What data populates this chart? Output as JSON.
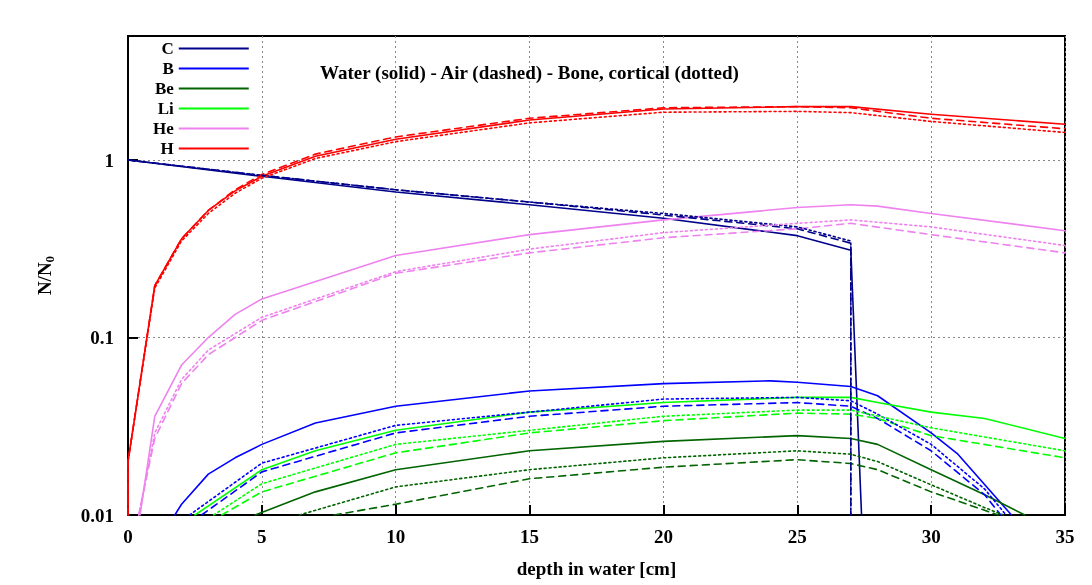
{
  "chart_data": {
    "type": "line",
    "title": "Water (solid) - Air (dashed) - Bone, cortical (dotted)",
    "xlabel": "depth in water [cm]",
    "ylabel": "N/N$_{0}$",
    "xlim": [
      0,
      35
    ],
    "xticks": [
      0,
      5,
      10,
      15,
      20,
      25,
      30,
      35
    ],
    "ylim": [
      0.01,
      5
    ],
    "yticks": [
      0.01,
      0.1,
      1
    ],
    "log": "y",
    "grid": true,
    "legend": "top left",
    "marker": "none",
    "series": [
      {
        "name": "C",
        "color": "#00008b",
        "line_style": "solid",
        "x": [
          0,
          5,
          10,
          15,
          20,
          25,
          27,
          27.4
        ],
        "values": [
          1,
          0.81,
          0.66,
          0.56,
          0.47,
          0.375,
          0.31,
          0.01
        ]
      },
      {
        "name": "B",
        "color": "#0000ff",
        "line_style": "solid",
        "x": [
          1.75,
          2,
          3,
          4,
          5,
          7,
          10,
          15,
          20,
          24,
          25,
          27,
          28,
          30,
          31,
          33
        ],
        "values": [
          0.01,
          0.0115,
          0.017,
          0.021,
          0.025,
          0.033,
          0.041,
          0.05,
          0.055,
          0.057,
          0.056,
          0.053,
          0.047,
          0.029,
          0.022,
          0.01
        ]
      },
      {
        "name": "Be",
        "color": "#006400",
        "line_style": "solid",
        "x": [
          4.75,
          7,
          10,
          15,
          20,
          25,
          27,
          28,
          30,
          32,
          33.5
        ],
        "values": [
          0.01,
          0.0135,
          0.018,
          0.023,
          0.026,
          0.028,
          0.027,
          0.025,
          0.018,
          0.013,
          0.01
        ]
      },
      {
        "name": "Li",
        "color": "#00ff00",
        "line_style": "solid",
        "x": [
          2.5,
          5,
          7,
          10,
          15,
          20,
          25,
          27,
          28,
          30,
          32,
          35
        ],
        "values": [
          0.01,
          0.018,
          0.023,
          0.03,
          0.038,
          0.043,
          0.046,
          0.046,
          0.043,
          0.038,
          0.035,
          0.027
        ]
      },
      {
        "name": "He",
        "color": "#ee82ee",
        "line_style": "solid",
        "x": [
          0.45,
          1,
          2,
          3,
          4,
          5,
          10,
          15,
          20,
          25,
          27,
          28,
          30,
          35
        ],
        "values": [
          0.01,
          0.036,
          0.07,
          0.1,
          0.135,
          0.165,
          0.29,
          0.38,
          0.46,
          0.54,
          0.56,
          0.55,
          0.5,
          0.4
        ]
      },
      {
        "name": "H",
        "color": "#ff0000",
        "line_style": "solid",
        "x": [
          0,
          0,
          1,
          2,
          3,
          4,
          5,
          7,
          10,
          15,
          20,
          25,
          27,
          30,
          35
        ],
        "values": [
          0.01,
          0.02,
          0.196,
          0.36,
          0.52,
          0.67,
          0.81,
          1.05,
          1.31,
          1.68,
          1.94,
          2.0,
          2.0,
          1.81,
          1.59
        ]
      },
      {
        "color": "#00008b",
        "line_style": "dashed",
        "x": [
          0,
          5,
          10,
          15,
          20,
          25,
          27,
          27
        ],
        "values": [
          1,
          0.82,
          0.68,
          0.58,
          0.49,
          0.41,
          0.34,
          0.01
        ]
      },
      {
        "color": "#0000ff",
        "line_style": "dashed",
        "x": [
          2.75,
          5,
          10,
          15,
          20,
          25,
          27,
          28,
          30,
          32,
          32.6
        ],
        "values": [
          0.01,
          0.0175,
          0.029,
          0.036,
          0.041,
          0.043,
          0.041,
          0.035,
          0.023,
          0.013,
          0.01
        ]
      },
      {
        "color": "#006400",
        "line_style": "dashed",
        "x": [
          7.7,
          10,
          15,
          20,
          25,
          27,
          28,
          30,
          31,
          32.5
        ],
        "values": [
          0.01,
          0.0115,
          0.016,
          0.0186,
          0.0205,
          0.0195,
          0.018,
          0.0135,
          0.012,
          0.01
        ]
      },
      {
        "color": "#00ff00",
        "line_style": "dashed",
        "x": [
          3.5,
          5,
          10,
          15,
          20,
          25,
          27,
          28,
          30,
          35
        ],
        "values": [
          0.01,
          0.0135,
          0.0224,
          0.029,
          0.034,
          0.0375,
          0.037,
          0.035,
          0.028,
          0.021
        ]
      },
      {
        "color": "#ee82ee",
        "line_style": "dashed",
        "x": [
          0.4,
          1,
          2,
          3,
          5,
          10,
          15,
          20,
          25,
          27,
          30,
          35
        ],
        "values": [
          0.01,
          0.027,
          0.055,
          0.08,
          0.125,
          0.23,
          0.3,
          0.365,
          0.41,
          0.44,
          0.38,
          0.3
        ]
      },
      {
        "color": "#ff0000",
        "line_style": "dashed",
        "x": [
          0,
          0,
          1,
          2,
          3,
          4,
          5,
          7,
          10,
          15,
          20,
          25,
          27,
          30,
          35
        ],
        "values": [
          0.01,
          0.02,
          0.196,
          0.36,
          0.52,
          0.68,
          0.83,
          1.08,
          1.35,
          1.72,
          1.97,
          2.0,
          1.97,
          1.72,
          1.5
        ]
      },
      {
        "color": "#00008b",
        "line_style": "dotted",
        "x": [
          0,
          5,
          10,
          15,
          20,
          25,
          27,
          27
        ],
        "values": [
          1,
          0.82,
          0.68,
          0.58,
          0.5,
          0.42,
          0.35,
          0.01
        ]
      },
      {
        "color": "#0000ff",
        "line_style": "dotted",
        "x": [
          2.3,
          5,
          10,
          15,
          20,
          25,
          27,
          28,
          30,
          32,
          32.8
        ],
        "values": [
          0.01,
          0.0196,
          0.032,
          0.038,
          0.045,
          0.046,
          0.044,
          0.037,
          0.025,
          0.014,
          0.01
        ]
      },
      {
        "color": "#006400",
        "line_style": "dotted",
        "x": [
          6.4,
          10,
          15,
          20,
          25,
          27,
          28,
          30,
          32,
          32.7
        ],
        "values": [
          0.01,
          0.0144,
          0.018,
          0.021,
          0.023,
          0.022,
          0.02,
          0.0148,
          0.011,
          0.01
        ]
      },
      {
        "color": "#00ff00",
        "line_style": "dotted",
        "x": [
          3.2,
          5,
          10,
          15,
          20,
          25,
          27,
          30,
          35
        ],
        "values": [
          0.01,
          0.015,
          0.025,
          0.03,
          0.036,
          0.039,
          0.039,
          0.031,
          0.023
        ]
      },
      {
        "color": "#ee82ee",
        "line_style": "dotted",
        "x": [
          0.4,
          1,
          2,
          3,
          5,
          10,
          15,
          20,
          25,
          27,
          30,
          35
        ],
        "values": [
          0.01,
          0.029,
          0.058,
          0.085,
          0.13,
          0.235,
          0.315,
          0.39,
          0.44,
          0.46,
          0.42,
          0.33
        ]
      },
      {
        "color": "#ff0000",
        "line_style": "dotted",
        "x": [
          0,
          0,
          1,
          2,
          3,
          4,
          5,
          7,
          10,
          15,
          20,
          25,
          27,
          30,
          35
        ],
        "values": [
          0.01,
          0.02,
          0.19,
          0.35,
          0.5,
          0.65,
          0.79,
          1.02,
          1.27,
          1.62,
          1.86,
          1.88,
          1.85,
          1.65,
          1.43
        ]
      }
    ]
  }
}
